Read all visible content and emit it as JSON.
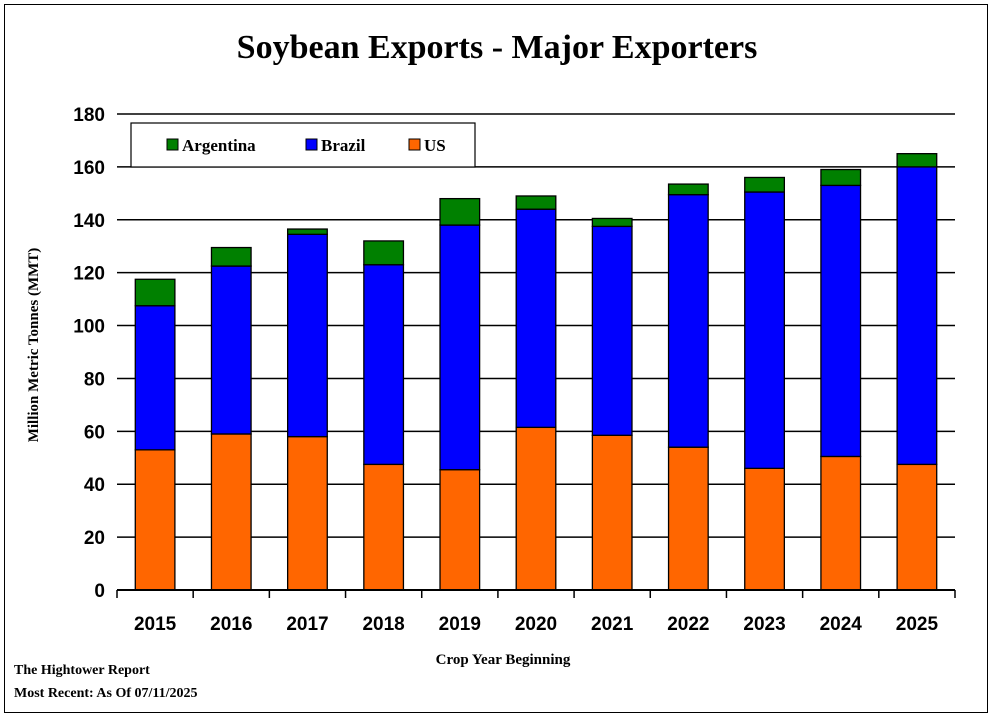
{
  "chart_data": {
    "type": "bar",
    "stacked": true,
    "title": "Soybean Exports - Major Exporters",
    "xlabel": "Crop Year Beginning",
    "ylabel": "Million Metric Tonnes (MMT)",
    "ylim": [
      0,
      180
    ],
    "yticks": [
      0,
      20,
      40,
      60,
      80,
      100,
      120,
      140,
      160,
      180
    ],
    "grid": true,
    "legend_position": "top-left",
    "categories": [
      "2015",
      "2016",
      "2017",
      "2018",
      "2019",
      "2020",
      "2021",
      "2022",
      "2023",
      "2024",
      "2025"
    ],
    "series": [
      {
        "name": "US",
        "color": "#ff6600",
        "values": [
          53,
          59,
          58,
          47.5,
          45.5,
          61.5,
          58.5,
          54,
          46,
          50.5,
          47.5
        ]
      },
      {
        "name": "Brazil",
        "color": "#0000ff",
        "values": [
          54.5,
          63.5,
          76.5,
          75.5,
          92.5,
          82.5,
          79,
          95.5,
          104.5,
          102.5,
          112.5
        ]
      },
      {
        "name": "Argentina",
        "color": "#008000",
        "values": [
          10,
          7,
          2,
          9,
          10,
          5,
          3,
          4,
          5.5,
          6,
          5
        ]
      }
    ],
    "legend_order": [
      "Argentina",
      "Brazil",
      "US"
    ]
  },
  "footer": {
    "source": "The Hightower Report",
    "date": "Most Recent: As Of 07/11/2025"
  }
}
